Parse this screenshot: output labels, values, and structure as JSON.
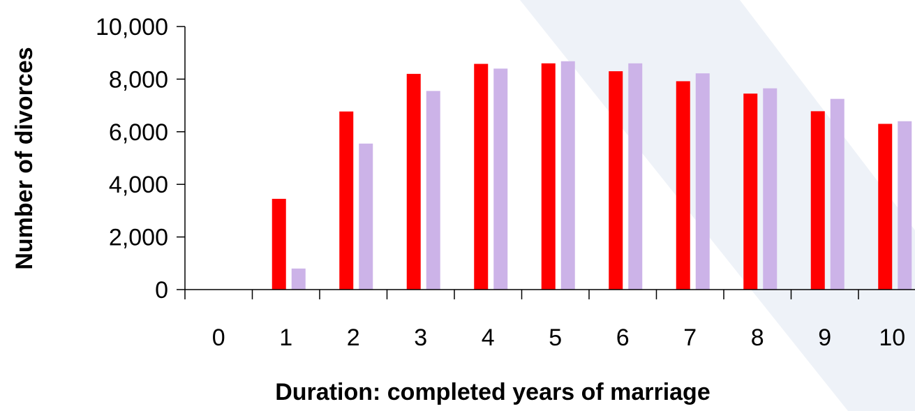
{
  "chart_data": {
    "type": "bar",
    "title": "",
    "xlabel": "Duration: completed years of marriage",
    "ylabel": "Number of divorces",
    "categories": [
      "0",
      "1",
      "2",
      "3",
      "4",
      "5",
      "6",
      "7",
      "8",
      "9",
      "10"
    ],
    "series": [
      {
        "values": [
          0,
          3450,
          6770,
          8200,
          8580,
          8600,
          8300,
          7920,
          7450,
          6780,
          6300
        ],
        "color": "#ff0000"
      },
      {
        "values": [
          0,
          800,
          5550,
          7550,
          8400,
          8680,
          8600,
          8220,
          7650,
          7250,
          6400
        ],
        "color": "#ccb3e8"
      }
    ],
    "ylim": [
      0,
      10000
    ],
    "yticks": [
      0,
      2000,
      4000,
      6000,
      8000,
      10000
    ],
    "ytick_labels": [
      "0",
      "2,000",
      "4,000",
      "6,000",
      "8,000",
      "10,000"
    ],
    "legend": "none",
    "grid": false,
    "background_watermark_color": "#eef2f8"
  }
}
